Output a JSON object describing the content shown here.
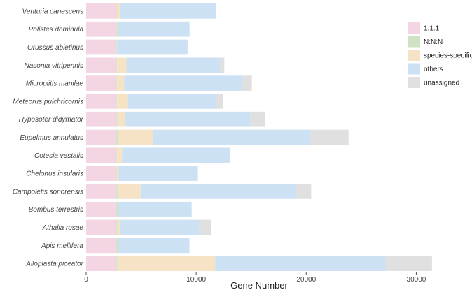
{
  "chart_data": {
    "type": "bar",
    "orientation": "horizontal",
    "stacked": true,
    "xlabel": "Gene Number",
    "ylabel": "",
    "xlim": [
      0,
      31500
    ],
    "xticks": [
      0,
      10000,
      20000,
      30000
    ],
    "xtick_labels": [
      "0",
      "10000",
      "20000",
      "30000"
    ],
    "grid": false,
    "legend_position": "right",
    "categories": [
      "Venturia canescens",
      "Polistes dominula",
      "Orussus abietinus",
      "Nasonia vitripennis",
      "Microplitis manilae",
      "Meteorus pulchricornis",
      "Hyposoter didymator",
      "Eupelmus annulatus",
      "Cotesia vestalis",
      "Chelonus insularis",
      "Campoletis sonorensis",
      "Bombus terrestris",
      "Athalia rosae",
      "Apis mellifera",
      "Alloplasta piceator"
    ],
    "series": [
      {
        "name": "1:1:1",
        "color": "#f4d5e3",
        "values": [
          2750,
          2750,
          2750,
          2750,
          2750,
          2750,
          2750,
          2750,
          2750,
          2750,
          2750,
          2750,
          2750,
          2750,
          2750
        ]
      },
      {
        "name": "N:N:N",
        "color": "#cfe3c4",
        "values": [
          50,
          80,
          60,
          60,
          60,
          60,
          80,
          200,
          60,
          60,
          100,
          120,
          80,
          120,
          80
        ]
      },
      {
        "name": "species-specific",
        "color": "#f6e3c6",
        "values": [
          300,
          70,
          10,
          850,
          650,
          1000,
          700,
          3100,
          450,
          150,
          2100,
          20,
          250,
          20,
          8900
        ]
      },
      {
        "name": "others",
        "color": "#cde1f4",
        "values": [
          8700,
          6500,
          6400,
          8500,
          10700,
          8000,
          11400,
          14300,
          9800,
          7200,
          14100,
          6700,
          7200,
          6500,
          15500
        ]
      },
      {
        "name": "unassigned",
        "color": "#e0e0e0",
        "values": [
          0,
          0,
          0,
          400,
          900,
          600,
          1300,
          3500,
          0,
          0,
          1400,
          0,
          1100,
          0,
          4200
        ]
      }
    ]
  }
}
